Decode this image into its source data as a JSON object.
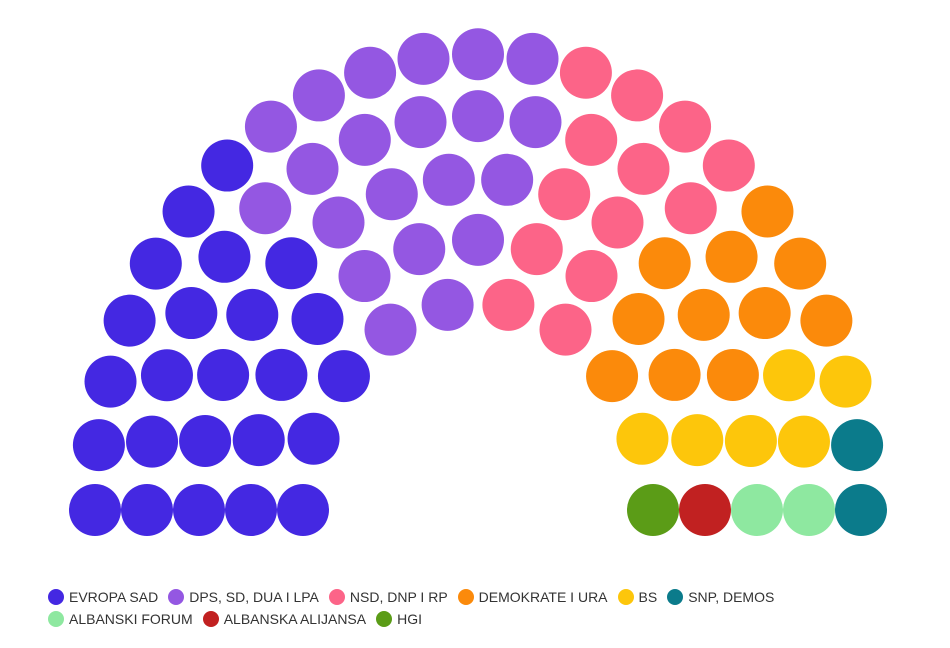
{
  "chart_data": {
    "type": "parliament",
    "series": [
      {
        "name": "EVROPA SAD",
        "color": "#4428e2",
        "values": 24
      },
      {
        "name": "DPS, SD, DUA I LPA",
        "color": "#9457e2",
        "values": 21
      },
      {
        "name": "NSD, DNP I RP",
        "color": "#fc6488",
        "values": 13
      },
      {
        "name": "DEMOKRATE I URA",
        "color": "#fb8a0b",
        "values": 11
      },
      {
        "name": "BS",
        "color": "#fdc60b",
        "values": 6
      },
      {
        "name": "SNP, DEMOS",
        "color": "#0b7b8b",
        "values": 2
      },
      {
        "name": "ALBANSKI FORUM",
        "color": "#8ee8a0",
        "values": 2
      },
      {
        "name": "ALBANSKA ALIJANSA",
        "color": "#c12121",
        "values": 1
      },
      {
        "name": "HGI",
        "color": "#5b9c17",
        "values": 1
      }
    ]
  }
}
